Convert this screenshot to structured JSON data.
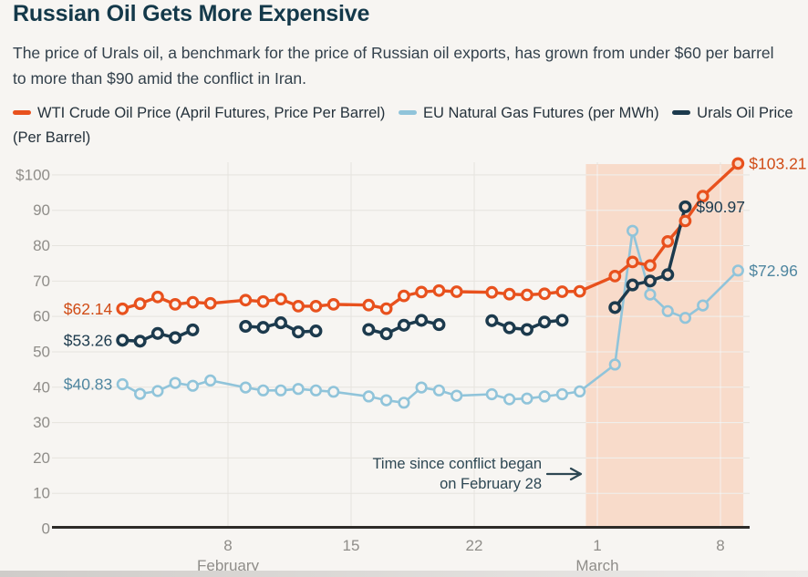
{
  "page": {
    "bg_color": "#f7f5f2",
    "bottom_strip_colors": [
      "#cfccc9",
      "#edebe9"
    ]
  },
  "header": {
    "title": "Russian Oil Gets More Expensive",
    "subtitle": "The price of Urals oil, a benchmark for the price of Russian oil exports, has grown from under $60 per barrel to more than $90 amid the conflict in Iran."
  },
  "legend": {
    "items": [
      {
        "id": "wti",
        "label": "WTI Crude Oil Price (April Futures, Price Per Barrel)",
        "color": "#e8511d",
        "nowrap": true
      },
      {
        "id": "gas",
        "label": "EU Natural Gas Futures (per MWh)",
        "color": "#90c4da",
        "nowrap": true
      },
      {
        "id": "urals",
        "label": "Urals Oil Price (Per Barrel)",
        "color": "#1c3a4d",
        "nowrap": false
      }
    ]
  },
  "chart_data": {
    "type": "line",
    "y_ticks": [
      {
        "v": 100,
        "label": "$100"
      },
      {
        "v": 90,
        "label": "90"
      },
      {
        "v": 80,
        "label": "80"
      },
      {
        "v": 70,
        "label": "70"
      },
      {
        "v": 60,
        "label": "60"
      },
      {
        "v": 50,
        "label": "50"
      },
      {
        "v": 40,
        "label": "40"
      },
      {
        "v": 30,
        "label": "30"
      },
      {
        "v": 20,
        "label": "20"
      },
      {
        "v": 10,
        "label": "10"
      },
      {
        "v": 0,
        "label": "0"
      }
    ],
    "ylim": [
      0,
      105
    ],
    "x_ticks": [
      {
        "day": 8,
        "label": "8"
      },
      {
        "day": 15,
        "label": "15"
      },
      {
        "day": 22,
        "label": "22"
      },
      {
        "day": 29,
        "label": "1"
      },
      {
        "day": 36,
        "label": "8"
      }
    ],
    "month_labels": [
      {
        "day": 8,
        "label": "February"
      },
      {
        "day": 29,
        "label": "March"
      }
    ],
    "band": {
      "from_day": 28.35,
      "to_day": 37.3,
      "color": "#f8dbca"
    },
    "annotation": {
      "lines": [
        "Time since conflict began",
        "on February 28"
      ],
      "color": "#2d4753"
    },
    "colors": {
      "grid": "#e6e3de",
      "axis": "#2d2b28",
      "tick_text": "#8f8d89"
    },
    "series": [
      {
        "id": "gas",
        "name": "EU Natural Gas Futures (per MWh)",
        "color": "#90c4da",
        "label_color": "#4f86a0",
        "connect_gaps": true,
        "line_width": 2.6,
        "marker_stroke": 2.6,
        "points": [
          [
            2,
            40.83
          ],
          [
            3,
            38.1
          ],
          [
            4,
            38.9
          ],
          [
            5,
            41.2
          ],
          [
            6,
            40.4
          ],
          [
            7,
            41.9
          ],
          [
            9,
            39.9
          ],
          [
            10,
            39.1
          ],
          [
            11,
            39.1
          ],
          [
            12,
            39.5
          ],
          [
            13,
            39.1
          ],
          [
            14,
            38.7
          ],
          [
            16,
            37.4
          ],
          [
            17,
            36.3
          ],
          [
            18,
            35.6
          ],
          [
            19,
            39.9
          ],
          [
            20,
            39.1
          ],
          [
            21,
            37.6
          ],
          [
            23,
            38.0
          ],
          [
            24,
            36.6
          ],
          [
            25,
            36.8
          ],
          [
            26,
            37.4
          ],
          [
            27,
            38.0
          ],
          [
            28,
            38.8
          ],
          [
            30,
            46.4
          ],
          [
            31,
            84.2
          ],
          [
            32,
            66.2
          ],
          [
            33,
            61.5
          ],
          [
            34,
            59.6
          ],
          [
            35,
            63.1
          ],
          [
            37,
            72.96
          ]
        ],
        "labels": [
          {
            "text": "$40.83",
            "day": 2,
            "value": 40.83,
            "side": "left"
          },
          {
            "text": "$72.96",
            "day": 37,
            "value": 72.96,
            "side": "right"
          }
        ]
      },
      {
        "id": "wti",
        "name": "WTI Crude Oil Price (April Futures, Price Per Barrel)",
        "color": "#e8511d",
        "label_color": "#d04b15",
        "connect_gaps": true,
        "line_width": 3.4,
        "marker_stroke": 3.2,
        "points": [
          [
            2,
            62.14
          ],
          [
            3,
            63.6
          ],
          [
            4,
            65.5
          ],
          [
            5,
            63.4
          ],
          [
            6,
            64.0
          ],
          [
            7,
            63.7
          ],
          [
            9,
            64.6
          ],
          [
            10,
            64.2
          ],
          [
            11,
            64.9
          ],
          [
            12,
            62.9
          ],
          [
            13,
            62.9
          ],
          [
            14,
            63.4
          ],
          [
            16,
            63.2
          ],
          [
            17,
            62.2
          ],
          [
            18,
            65.8
          ],
          [
            19,
            66.9
          ],
          [
            20,
            67.3
          ],
          [
            21,
            67.0
          ],
          [
            23,
            66.8
          ],
          [
            24,
            66.3
          ],
          [
            25,
            66.1
          ],
          [
            26,
            66.4
          ],
          [
            27,
            67.0
          ],
          [
            28,
            67.1
          ],
          [
            30,
            71.4
          ],
          [
            31,
            75.4
          ],
          [
            32,
            74.4
          ],
          [
            33,
            81.2
          ],
          [
            34,
            87.0
          ],
          [
            35,
            94.0
          ],
          [
            37,
            103.21
          ]
        ],
        "labels": [
          {
            "text": "$62.14",
            "day": 2,
            "value": 62.14,
            "side": "left"
          },
          {
            "text": "$103.21",
            "day": 37,
            "value": 103.21,
            "side": "right"
          }
        ]
      },
      {
        "id": "urals",
        "name": "Urals Oil Price (Per Barrel)",
        "color": "#1c3a4d",
        "label_color": "#1c3a4d",
        "connect_gaps": false,
        "line_width": 3.5,
        "marker_stroke": 3.5,
        "points": [
          [
            2,
            53.26
          ],
          [
            3,
            53.0
          ],
          [
            4,
            55.2
          ],
          [
            5,
            54.0
          ],
          [
            6,
            56.2
          ],
          [
            9,
            57.2
          ],
          [
            10,
            56.9
          ],
          [
            11,
            58.2
          ],
          [
            12,
            55.6
          ],
          [
            13,
            55.9
          ],
          [
            16,
            56.3
          ],
          [
            17,
            55.1
          ],
          [
            18,
            57.5
          ],
          [
            19,
            58.9
          ],
          [
            20,
            57.7
          ],
          [
            23,
            58.8
          ],
          [
            24,
            56.8
          ],
          [
            25,
            56.3
          ],
          [
            26,
            58.4
          ],
          [
            27,
            58.9
          ],
          [
            30,
            62.5
          ],
          [
            31,
            68.9
          ],
          [
            32,
            70.0
          ],
          [
            33,
            71.8
          ],
          [
            34,
            90.97
          ]
        ],
        "labels": [
          {
            "text": "$53.26",
            "day": 2,
            "value": 53.26,
            "side": "left"
          },
          {
            "text": "$90.97",
            "day": 34,
            "value": 90.97,
            "side": "right"
          }
        ]
      }
    ]
  }
}
